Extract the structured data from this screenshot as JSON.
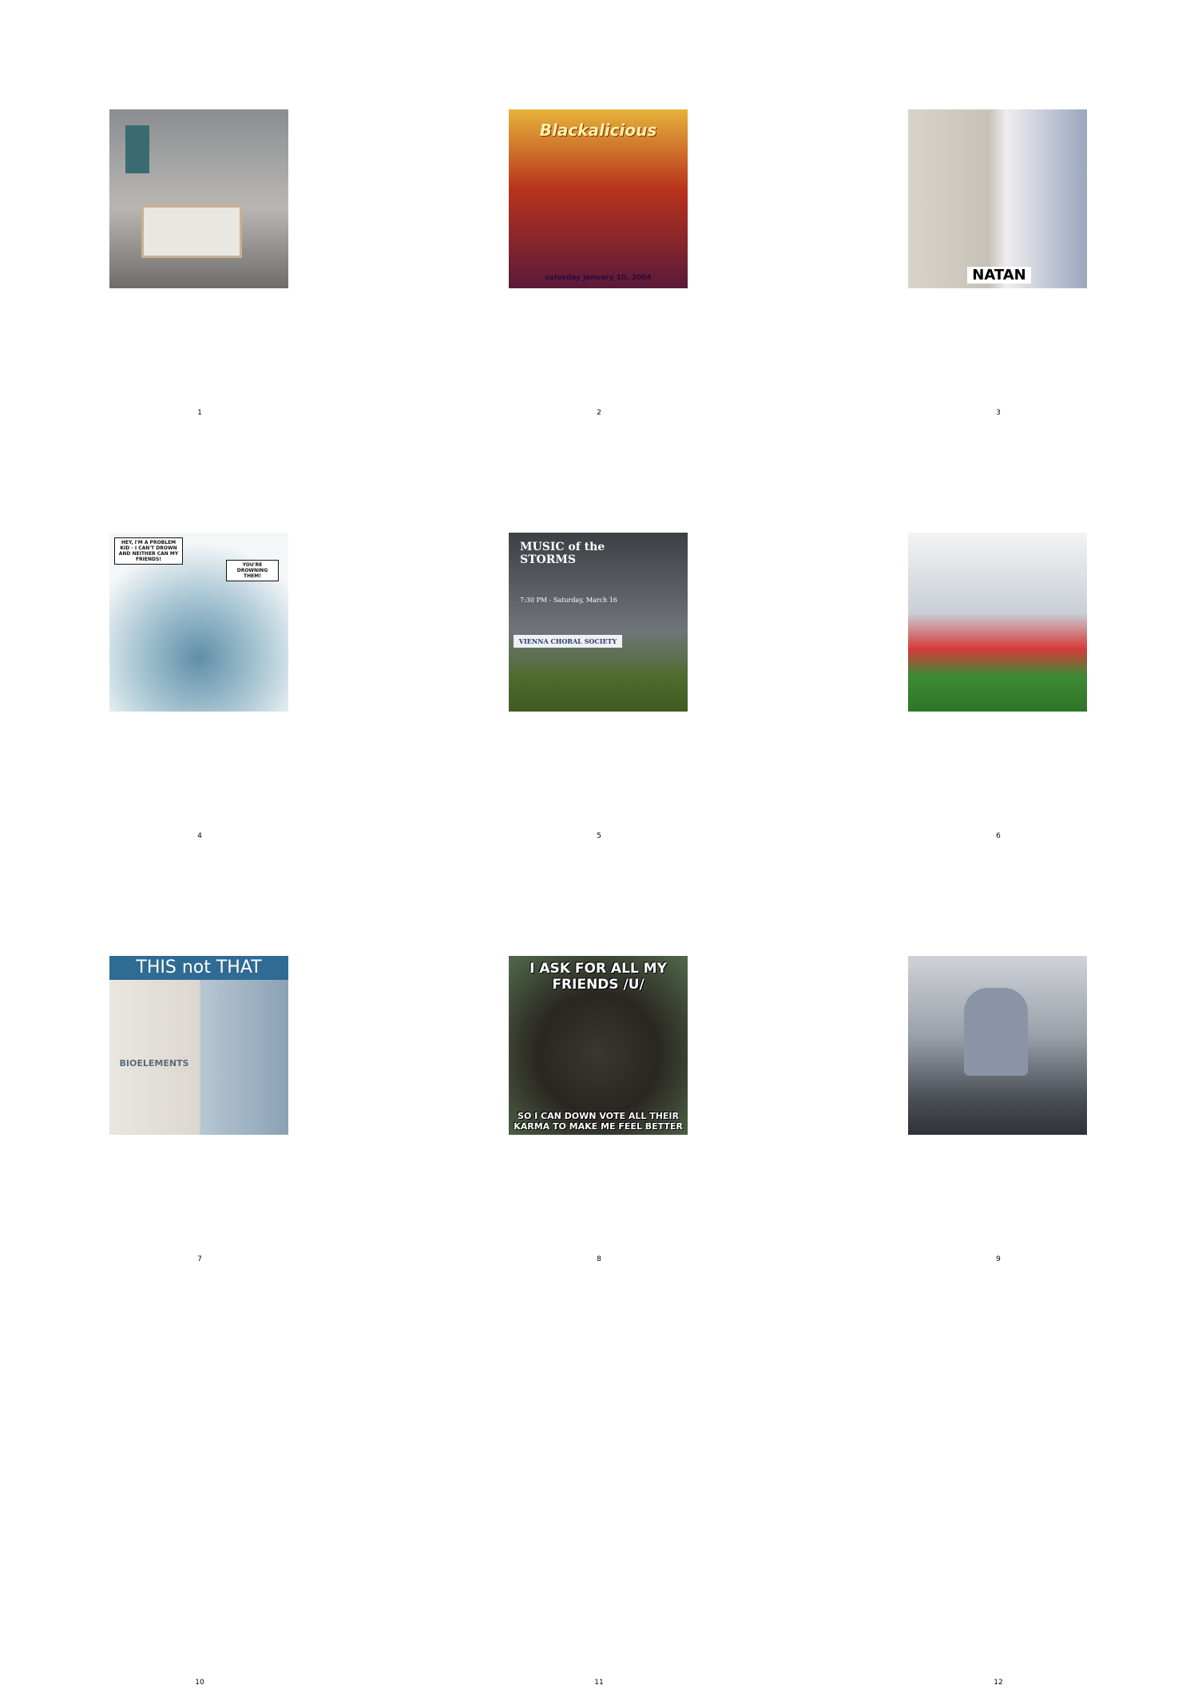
{
  "panels": [
    {
      "number": "1",
      "image": "bedroom-photo"
    },
    {
      "number": "2",
      "image": "concert-poster",
      "text": {
        "title": "Blackalicious",
        "sub": "saturday january 10, 2004"
      }
    },
    {
      "number": "3",
      "image": "fashion-photo",
      "text": {
        "label": "NATAN"
      }
    },
    {
      "number": "4",
      "image": "comic-drawing",
      "text": {
        "bubble_left": "HEY, I'M A PROBLEM KID - I CAN'T DROWN AND NEITHER CAN MY FRIENDS!",
        "bubble_right": "YOU'RE DROWNING THEM!"
      }
    },
    {
      "number": "5",
      "image": "choral-poster",
      "text": {
        "title": "MUSIC of the STORMS",
        "date": "7:30 PM - Saturday, March 16",
        "org": "VIENNA CHORAL SOCIETY"
      }
    },
    {
      "number": "6",
      "image": "football-photo"
    },
    {
      "number": "7",
      "image": "skincare-ad",
      "text": {
        "headline": "THIS not THAT",
        "brand": "BIOELEMENTS"
      }
    },
    {
      "number": "8",
      "image": "bear-meme",
      "text": {
        "top": "I ASK FOR ALL MY FRIENDS /U/",
        "bottom": "SO I CAN DOWN VOTE ALL THEIR KARMA TO MAKE ME FEEL BETTER"
      }
    },
    {
      "number": "9",
      "image": "interview-photo"
    },
    {
      "number": "10"
    },
    {
      "number": "11"
    },
    {
      "number": "12"
    }
  ]
}
